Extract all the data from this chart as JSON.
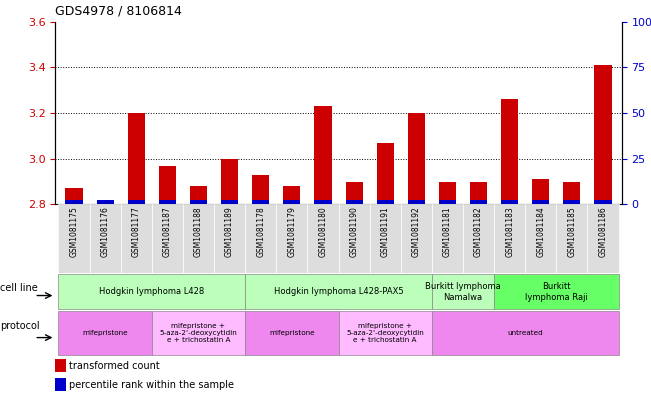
{
  "title": "GDS4978 / 8106814",
  "samples": [
    "GSM1081175",
    "GSM1081176",
    "GSM1081177",
    "GSM1081187",
    "GSM1081188",
    "GSM1081189",
    "GSM1081178",
    "GSM1081179",
    "GSM1081180",
    "GSM1081190",
    "GSM1081191",
    "GSM1081192",
    "GSM1081181",
    "GSM1081182",
    "GSM1081183",
    "GSM1081184",
    "GSM1081185",
    "GSM1081186"
  ],
  "red_values": [
    2.87,
    2.8,
    3.2,
    2.97,
    2.88,
    3.0,
    2.93,
    2.88,
    3.23,
    2.9,
    3.07,
    3.2,
    2.9,
    2.9,
    3.26,
    2.91,
    2.9,
    3.41
  ],
  "y_min": 2.8,
  "y_max": 3.6,
  "y_ticks_left": [
    2.8,
    3.0,
    3.2,
    3.4,
    3.6
  ],
  "y_ticks_right_vals": [
    0,
    25,
    50,
    75,
    100
  ],
  "cell_line_groups": [
    {
      "label": "Hodgkin lymphoma L428",
      "start": 0,
      "end": 5,
      "color": "#bbffbb"
    },
    {
      "label": "Hodgkin lymphoma L428-PAX5",
      "start": 6,
      "end": 11,
      "color": "#bbffbb"
    },
    {
      "label": "Burkitt lymphoma\nNamalwa",
      "start": 12,
      "end": 13,
      "color": "#bbffbb"
    },
    {
      "label": "Burkitt\nlymphoma Raji",
      "start": 14,
      "end": 17,
      "color": "#66ff66"
    }
  ],
  "protocol_groups": [
    {
      "label": "mifepristone",
      "start": 0,
      "end": 2,
      "color": "#ee88ee"
    },
    {
      "label": "mifepristone +\n5-aza-2'-deoxycytidin\ne + trichostatin A",
      "start": 3,
      "end": 5,
      "color": "#ffbbff"
    },
    {
      "label": "mifepristone",
      "start": 6,
      "end": 8,
      "color": "#ee88ee"
    },
    {
      "label": "mifepristone +\n5-aza-2'-deoxycytidin\ne + trichostatin A",
      "start": 9,
      "end": 11,
      "color": "#ffbbff"
    },
    {
      "label": "untreated",
      "start": 12,
      "end": 17,
      "color": "#ee88ee"
    }
  ],
  "bar_color_red": "#cc0000",
  "bar_color_blue": "#0000cc",
  "bg_color": "#ffffff",
  "tick_color_left": "#cc0000",
  "tick_color_right": "#0000cc",
  "sample_bg": "#dddddd",
  "grid_lines": [
    3.0,
    3.2,
    3.4
  ],
  "blue_bar_height": 0.018
}
